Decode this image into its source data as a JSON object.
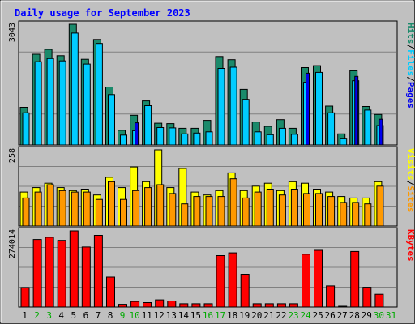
{
  "chart_data": {
    "type": "bar",
    "title": "Daily usage for September 2023",
    "x": [
      "1",
      "2",
      "3",
      "4",
      "5",
      "6",
      "7",
      "8",
      "9",
      "10",
      "11",
      "12",
      "13",
      "14",
      "15",
      "16",
      "17",
      "18",
      "19",
      "20",
      "21",
      "22",
      "23",
      "24",
      "25",
      "26",
      "27",
      "28",
      "29",
      "30",
      "31"
    ],
    "weekend_days": [
      2,
      3,
      9,
      10,
      16,
      17,
      23,
      24,
      30,
      31
    ],
    "panels": [
      {
        "id": "hits_files_pages",
        "max_label": "3043",
        "ymax": 3043,
        "legend": [
          "Pages",
          "Files",
          "Hits"
        ],
        "series": [
          {
            "name": "Hits",
            "color": "#1b8a6b",
            "values": [
              950,
              2288,
              2410,
              2250,
              3043,
              2160,
              2660,
              1460,
              370,
              750,
              1110,
              550,
              540,
              420,
              420,
              620,
              2230,
              2150,
              1400,
              580,
              470,
              640,
              420,
              1950,
              2000,
              980,
              280,
              1870,
              970,
              770,
              null
            ]
          },
          {
            "name": "Files",
            "color": "#00ccff",
            "values": [
              810,
              2100,
              2180,
              2120,
              2820,
              2040,
              2560,
              1270,
              250,
              360,
              990,
              440,
              430,
              280,
              300,
              330,
              1930,
              1960,
              1150,
              330,
              260,
              420,
              270,
              1580,
              1830,
              810,
              170,
              1620,
              880,
              490,
              null
            ]
          },
          {
            "name": "Pages",
            "color": "#0000ee",
            "values": [
              0,
              0,
              0,
              0,
              0,
              0,
              0,
              0,
              0,
              560,
              0,
              0,
              0,
              0,
              0,
              0,
              0,
              0,
              0,
              0,
              0,
              0,
              0,
              1810,
              0,
              0,
              0,
              1730,
              0,
              650,
              null
            ]
          }
        ]
      },
      {
        "id": "visits_sites",
        "max_label": "258",
        "ymax": 258,
        "legend": [
          "Sites",
          "Visits"
        ],
        "series": [
          {
            "name": "Visits",
            "color": "#ffff00",
            "values": [
              115,
              130,
              145,
              130,
              120,
              125,
              105,
              165,
              130,
              200,
              150,
              258,
              130,
              195,
              115,
              105,
              120,
              180,
              120,
              135,
              145,
              120,
              150,
              145,
              125,
              115,
              100,
              95,
              95,
              150,
              null
            ]
          },
          {
            "name": "Sites",
            "color": "#ff9900",
            "values": [
              95,
              115,
              140,
              120,
              115,
              115,
              90,
              150,
              90,
              120,
              130,
              140,
              110,
              75,
              100,
              100,
              100,
              160,
              95,
              115,
              125,
              105,
              125,
              110,
              110,
              100,
              80,
              80,
              75,
              135,
              null
            ]
          }
        ]
      },
      {
        "id": "kbytes",
        "max_label": "274014",
        "ymax": 274014,
        "legend": [
          "KBytes"
        ],
        "series": [
          {
            "name": "KBytes",
            "color": "#ff0000",
            "values": [
              70000,
              243000,
              251000,
              240000,
              274014,
              216000,
              258000,
              108000,
              10000,
              20000,
              16000,
              26000,
              22000,
              12000,
              12000,
              12000,
              185000,
              195000,
              118000,
              12000,
              12000,
              12000,
              12000,
              190000,
              204000,
              76000,
              2000,
              200000,
              71000,
              46000,
              null
            ]
          }
        ]
      }
    ]
  }
}
